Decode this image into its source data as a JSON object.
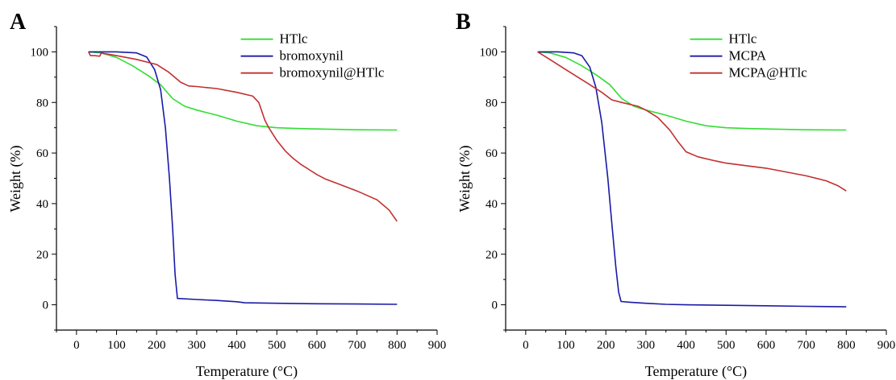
{
  "figure": {
    "panels": [
      {
        "letter": "A",
        "xlabel": "Temperature (°C)",
        "ylabel": "Weight (%)"
      },
      {
        "letter": "B",
        "xlabel": "Temperature (°C)",
        "ylabel": "Weight (%)"
      }
    ]
  },
  "chart_data": [
    {
      "type": "line",
      "panel_label": "A",
      "xlabel": "Temperature (°C)",
      "ylabel": "Weight (%)",
      "xlim": [
        -50,
        900
      ],
      "ylim": [
        -10,
        110
      ],
      "xticks": [
        0,
        100,
        200,
        300,
        400,
        500,
        600,
        700,
        800,
        900
      ],
      "yticks": [
        0,
        20,
        40,
        60,
        80,
        100
      ],
      "grid": false,
      "legend_position": "top-right",
      "series": [
        {
          "name": "HTlc",
          "color": "#33dd33",
          "points": [
            [
              30,
              100
            ],
            [
              60,
              99.6
            ],
            [
              100,
              97.8
            ],
            [
              140,
              94.5
            ],
            [
              180,
              90.5
            ],
            [
              210,
              87
            ],
            [
              240,
              81.5
            ],
            [
              270,
              78.5
            ],
            [
              300,
              77
            ],
            [
              350,
              75
            ],
            [
              400,
              72.6
            ],
            [
              450,
              70.8
            ],
            [
              500,
              70
            ],
            [
              550,
              69.7
            ],
            [
              600,
              69.5
            ],
            [
              700,
              69.2
            ],
            [
              800,
              69.1
            ]
          ]
        },
        {
          "name": "bromoxynil",
          "color": "#1a1aa8",
          "points": [
            [
              30,
              100
            ],
            [
              100,
              100
            ],
            [
              150,
              99.6
            ],
            [
              175,
              98
            ],
            [
              195,
              93
            ],
            [
              210,
              85
            ],
            [
              222,
              70
            ],
            [
              232,
              50
            ],
            [
              240,
              30
            ],
            [
              246,
              12
            ],
            [
              252,
              2.5
            ],
            [
              300,
              2.1
            ],
            [
              350,
              1.7
            ],
            [
              400,
              1.2
            ],
            [
              420,
              0.8
            ],
            [
              500,
              0.6
            ],
            [
              600,
              0.4
            ],
            [
              700,
              0.3
            ],
            [
              800,
              0.2
            ]
          ]
        },
        {
          "name": "bromoxynil@HTlc",
          "color": "#c23030",
          "points": [
            [
              30,
              100
            ],
            [
              35,
              98.5
            ],
            [
              45,
              98.5
            ],
            [
              58,
              98.3
            ],
            [
              62,
              99.6
            ],
            [
              70,
              99.3
            ],
            [
              100,
              98.5
            ],
            [
              150,
              97
            ],
            [
              200,
              95
            ],
            [
              230,
              92
            ],
            [
              260,
              88
            ],
            [
              280,
              86.5
            ],
            [
              300,
              86.3
            ],
            [
              350,
              85.5
            ],
            [
              400,
              84
            ],
            [
              440,
              82.5
            ],
            [
              455,
              80
            ],
            [
              470,
              73
            ],
            [
              480,
              70
            ],
            [
              500,
              65
            ],
            [
              520,
              61
            ],
            [
              540,
              58
            ],
            [
              560,
              55.5
            ],
            [
              580,
              53.5
            ],
            [
              600,
              51.5
            ],
            [
              620,
              49.8
            ],
            [
              650,
              48
            ],
            [
              700,
              45
            ],
            [
              750,
              41.5
            ],
            [
              780,
              37.5
            ],
            [
              800,
              33
            ]
          ]
        }
      ]
    },
    {
      "type": "line",
      "panel_label": "B",
      "xlabel": "Temperature (°C)",
      "ylabel": "Weight (%)",
      "xlim": [
        -50,
        900
      ],
      "ylim": [
        -10,
        110
      ],
      "xticks": [
        0,
        100,
        200,
        300,
        400,
        500,
        600,
        700,
        800,
        900
      ],
      "yticks": [
        0,
        20,
        40,
        60,
        80,
        100
      ],
      "grid": false,
      "legend_position": "top-right",
      "series": [
        {
          "name": "HTlc",
          "color": "#33dd33",
          "points": [
            [
              30,
              100
            ],
            [
              60,
              99.6
            ],
            [
              100,
              97.8
            ],
            [
              140,
              94.5
            ],
            [
              180,
              90.5
            ],
            [
              210,
              87
            ],
            [
              240,
              81.5
            ],
            [
              270,
              78.5
            ],
            [
              300,
              77
            ],
            [
              350,
              75
            ],
            [
              400,
              72.6
            ],
            [
              450,
              70.8
            ],
            [
              500,
              70
            ],
            [
              550,
              69.7
            ],
            [
              600,
              69.5
            ],
            [
              700,
              69.2
            ],
            [
              800,
              69.1
            ]
          ]
        },
        {
          "name": "MCPA",
          "color": "#1a1aa8",
          "points": [
            [
              30,
              100
            ],
            [
              80,
              100
            ],
            [
              120,
              99.6
            ],
            [
              140,
              98.5
            ],
            [
              160,
              94
            ],
            [
              175,
              86
            ],
            [
              190,
              72
            ],
            [
              205,
              50
            ],
            [
              215,
              32
            ],
            [
              225,
              15
            ],
            [
              232,
              5
            ],
            [
              238,
              1.3
            ],
            [
              260,
              1
            ],
            [
              300,
              0.6
            ],
            [
              350,
              0.2
            ],
            [
              400,
              0
            ],
            [
              500,
              -0.2
            ],
            [
              600,
              -0.4
            ],
            [
              700,
              -0.6
            ],
            [
              800,
              -0.8
            ]
          ]
        },
        {
          "name": "MCPA@HTlc",
          "color": "#c23030",
          "points": [
            [
              30,
              100
            ],
            [
              60,
              97
            ],
            [
              100,
              93
            ],
            [
              150,
              88
            ],
            [
              190,
              84
            ],
            [
              215,
              81
            ],
            [
              240,
              80
            ],
            [
              280,
              78.5
            ],
            [
              300,
              77
            ],
            [
              330,
              74
            ],
            [
              360,
              69
            ],
            [
              380,
              64.5
            ],
            [
              400,
              60.5
            ],
            [
              430,
              58.5
            ],
            [
              470,
              57
            ],
            [
              500,
              56
            ],
            [
              550,
              55
            ],
            [
              600,
              54
            ],
            [
              650,
              52.5
            ],
            [
              700,
              51
            ],
            [
              750,
              49
            ],
            [
              780,
              47
            ],
            [
              800,
              45
            ]
          ]
        }
      ]
    }
  ]
}
